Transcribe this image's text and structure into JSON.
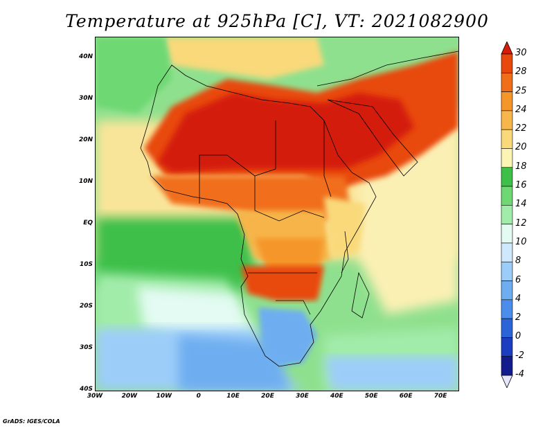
{
  "title": "Temperature at 925hPa [C], VT: 2021082900",
  "credit": "GrADS: IGES/COLA",
  "map": {
    "lat_labels": [
      "40N",
      "30N",
      "20N",
      "10N",
      "EQ",
      "10S",
      "20S",
      "30S",
      "40S"
    ],
    "lon_labels": [
      "30W",
      "20W",
      "10W",
      "0",
      "10E",
      "20E",
      "30E",
      "40E",
      "50E",
      "60E",
      "70E"
    ],
    "lon_range": [
      -30,
      75
    ],
    "lat_range": [
      -40,
      45
    ]
  },
  "colorbar": {
    "labels": [
      "30",
      "28",
      "25",
      "24",
      "22",
      "20",
      "18",
      "16",
      "14",
      "12",
      "10",
      "8",
      "6",
      "4",
      "2",
      "0",
      "-2",
      "-4"
    ],
    "colors": [
      "#d41c0a",
      "#e8480d",
      "#f06e1a",
      "#f5962a",
      "#f7b54a",
      "#f9d97a",
      "#fbf5b4",
      "#3ebf48",
      "#6ed872",
      "#a2ecaa",
      "#e3fbf3",
      "#cfe8fc",
      "#9ccdf9",
      "#6eadf0",
      "#4a8deb",
      "#2b64d6",
      "#1b3dbf",
      "#121c8c",
      "#0b0e5e"
    ]
  }
}
